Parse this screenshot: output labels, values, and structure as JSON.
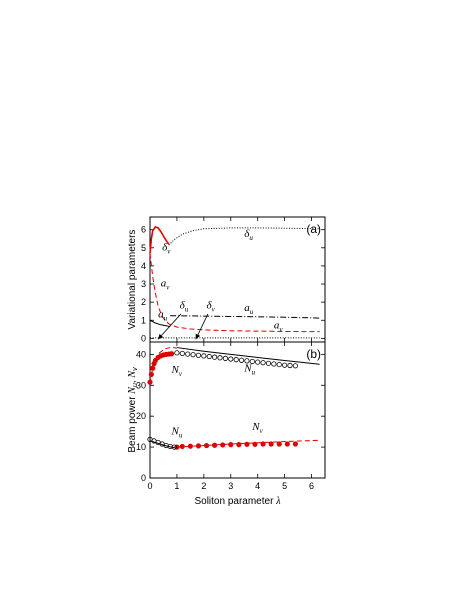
{
  "colors": {
    "black": "#000000",
    "red": "#e00000"
  },
  "chart_data": [
    {
      "panel": "a",
      "panel_label": "(a)",
      "type": "line",
      "ylabel": "Variational parameters",
      "xlim": [
        0,
        6.5
      ],
      "ylim": [
        -0.2,
        6.7
      ],
      "yticks": [
        0,
        1,
        2,
        3,
        4,
        5,
        6
      ],
      "series": [
        {
          "name": "δu",
          "color": "#000000",
          "style": "dotted",
          "points": [
            [
              0.7,
              5.15
            ],
            [
              0.9,
              5.45
            ],
            [
              1.2,
              5.75
            ],
            [
              1.6,
              5.95
            ],
            [
              2.0,
              6.05
            ],
            [
              3.0,
              6.1
            ],
            [
              4.0,
              6.1
            ],
            [
              5.0,
              6.08
            ],
            [
              6.3,
              6.05
            ]
          ]
        },
        {
          "name": "δv",
          "color": "#e00000",
          "style": "solid",
          "points": [
            [
              0.0,
              4.7
            ],
            [
              0.05,
              5.5
            ],
            [
              0.1,
              5.95
            ],
            [
              0.2,
              6.15
            ],
            [
              0.3,
              6.1
            ],
            [
              0.4,
              5.9
            ],
            [
              0.5,
              5.65
            ],
            [
              0.6,
              5.4
            ],
            [
              0.7,
              5.2
            ]
          ]
        },
        {
          "name": "av",
          "color": "#e00000",
          "style": "dashed",
          "points": [
            [
              0.0,
              4.7
            ],
            [
              0.1,
              3.4
            ],
            [
              0.2,
              2.5
            ],
            [
              0.3,
              1.8
            ],
            [
              0.4,
              1.4
            ],
            [
              0.5,
              1.1
            ],
            [
              0.7,
              0.8
            ],
            [
              1.0,
              0.62
            ],
            [
              1.5,
              0.52
            ],
            [
              2.0,
              0.47
            ],
            [
              3.0,
              0.42
            ],
            [
              4.0,
              0.4
            ],
            [
              5.0,
              0.38
            ],
            [
              6.3,
              0.37
            ]
          ]
        },
        {
          "name": "au",
          "color": "#000000",
          "style": "solid",
          "points": [
            [
              0.0,
              1.0
            ],
            [
              0.2,
              0.85
            ],
            [
              0.4,
              0.75
            ],
            [
              0.6,
              0.7
            ],
            [
              0.75,
              0.65
            ]
          ]
        },
        {
          "name": "au-upper",
          "color": "#000000",
          "style": "dashdot",
          "points": [
            [
              0.75,
              1.25
            ],
            [
              1.5,
              1.24
            ],
            [
              2.5,
              1.22
            ],
            [
              3.5,
              1.2
            ],
            [
              4.5,
              1.18
            ],
            [
              5.5,
              1.15
            ],
            [
              6.3,
              1.12
            ]
          ]
        },
        {
          "name": "δu-lower",
          "color": "#000000",
          "style": "dotted",
          "points": [
            [
              0.0,
              0.03
            ],
            [
              6.3,
              0.03
            ]
          ]
        }
      ],
      "annotations": [
        {
          "base": "δ",
          "sub": "u",
          "x": 3.5,
          "y": 5.6
        },
        {
          "base": "δ",
          "sub": "v",
          "x": 0.45,
          "y": 4.85
        },
        {
          "base": "a",
          "sub": "v",
          "x": 0.4,
          "y": 2.85
        },
        {
          "base": "δ",
          "sub": "u",
          "x": 1.1,
          "y": 1.65
        },
        {
          "base": "δ",
          "sub": "v",
          "x": 2.1,
          "y": 1.65
        },
        {
          "base": "a",
          "sub": "u",
          "x": 3.5,
          "y": 1.5
        },
        {
          "base": "a",
          "sub": "u",
          "x": 0.3,
          "y": 1.15
        },
        {
          "base": "a",
          "sub": "v",
          "x": 4.6,
          "y": 0.55
        }
      ],
      "arrows": [
        {
          "from": [
            1.15,
            1.35
          ],
          "to": [
            0.3,
            -0.05
          ]
        },
        {
          "from": [
            2.15,
            1.35
          ],
          "to": [
            1.7,
            -0.05
          ]
        }
      ]
    },
    {
      "panel": "b",
      "panel_label": "(b)",
      "type": "line",
      "ylabel": "Beam power",
      "ylabel_italic": "N",
      "xlabel": "Soliton parameter",
      "xlabel_symbol": "λ",
      "xlim": [
        0,
        6.5
      ],
      "ylim": [
        0,
        44
      ],
      "yticks": [
        0,
        10,
        20,
        30,
        40
      ],
      "xticks": [
        0,
        1,
        2,
        3,
        4,
        5,
        6
      ],
      "series": [
        {
          "name": "Nu",
          "color": "#000000",
          "style": "solid",
          "points": [
            [
              0.0,
              12.0
            ],
            [
              0.3,
              11.2
            ],
            [
              0.6,
              10.4
            ],
            [
              0.8,
              10.0
            ],
            [
              1.0,
              9.6
            ]
          ]
        },
        {
          "name": "Nu-upper",
          "color": "#000000",
          "style": "solid",
          "points": [
            [
              1.0,
              42.2
            ],
            [
              2.0,
              41.0
            ],
            [
              3.0,
              40.0
            ],
            [
              4.0,
              39.0
            ],
            [
              5.0,
              38.0
            ],
            [
              6.3,
              36.8
            ]
          ]
        },
        {
          "name": "Nv",
          "color": "#e00000",
          "style": "dashed",
          "points": [
            [
              0.0,
              30.5
            ],
            [
              0.1,
              35.5
            ],
            [
              0.2,
              38.5
            ],
            [
              0.35,
              40.5
            ],
            [
              0.55,
              41.8
            ],
            [
              0.8,
              42.3
            ],
            [
              1.0,
              42.0
            ]
          ]
        },
        {
          "name": "Nv-lower",
          "color": "#e00000",
          "style": "dashed",
          "points": [
            [
              1.0,
              10.0
            ],
            [
              2.0,
              10.5
            ],
            [
              3.0,
              11.0
            ],
            [
              4.0,
              11.4
            ],
            [
              5.0,
              11.8
            ],
            [
              6.3,
              12.2
            ]
          ]
        },
        {
          "name": "Nv-sim",
          "color": "#e00000",
          "style": "filled-circles",
          "points": [
            [
              0.0,
              31.0
            ],
            [
              0.05,
              33.5
            ],
            [
              0.1,
              35.5
            ],
            [
              0.15,
              37.0
            ],
            [
              0.2,
              38.0
            ],
            [
              0.3,
              39.0
            ],
            [
              0.4,
              39.5
            ],
            [
              0.5,
              39.8
            ],
            [
              0.6,
              40.0
            ],
            [
              0.7,
              40.1
            ],
            [
              0.8,
              40.2
            ],
            [
              1.0,
              10.0
            ],
            [
              1.2,
              10.2
            ],
            [
              1.5,
              10.3
            ],
            [
              1.8,
              10.4
            ],
            [
              2.1,
              10.5
            ],
            [
              2.4,
              10.6
            ],
            [
              2.7,
              10.7
            ],
            [
              3.0,
              10.8
            ],
            [
              3.3,
              10.8
            ],
            [
              3.6,
              10.9
            ],
            [
              3.9,
              10.9
            ],
            [
              4.2,
              11.0
            ],
            [
              4.5,
              11.0
            ],
            [
              4.8,
              11.0
            ],
            [
              5.1,
              11.0
            ],
            [
              5.4,
              11.0
            ]
          ]
        },
        {
          "name": "Nu-sim",
          "color": "#000000",
          "style": "open-circles",
          "points": [
            [
              0.0,
              12.5
            ],
            [
              0.15,
              12.0
            ],
            [
              0.3,
              11.5
            ],
            [
              0.45,
              11.0
            ],
            [
              0.6,
              10.5
            ],
            [
              0.75,
              10.2
            ],
            [
              0.9,
              10.0
            ],
            [
              1.0,
              40.5
            ],
            [
              1.2,
              40.3
            ],
            [
              1.4,
              40.1
            ],
            [
              1.6,
              39.9
            ],
            [
              1.8,
              39.7
            ],
            [
              2.0,
              39.5
            ],
            [
              2.2,
              39.3
            ],
            [
              2.4,
              39.1
            ],
            [
              2.6,
              38.9
            ],
            [
              2.8,
              38.7
            ],
            [
              3.0,
              38.5
            ],
            [
              3.2,
              38.3
            ],
            [
              3.4,
              38.1
            ],
            [
              3.6,
              37.9
            ],
            [
              3.8,
              37.7
            ],
            [
              4.0,
              37.5
            ],
            [
              4.2,
              37.3
            ],
            [
              4.4,
              37.1
            ],
            [
              4.6,
              36.9
            ],
            [
              4.8,
              36.7
            ],
            [
              5.0,
              36.5
            ],
            [
              5.2,
              36.4
            ],
            [
              5.4,
              36.3
            ]
          ]
        }
      ],
      "annotations": [
        {
          "base": "N",
          "sub": "v",
          "x": 0.8,
          "y": 34.0
        },
        {
          "base": "N",
          "sub": "u",
          "x": 3.5,
          "y": 34.5
        },
        {
          "base": "N",
          "sub": "v",
          "x": 3.8,
          "y": 15.5
        },
        {
          "base": "N",
          "sub": "u",
          "x": 0.8,
          "y": 14.0
        }
      ]
    }
  ]
}
